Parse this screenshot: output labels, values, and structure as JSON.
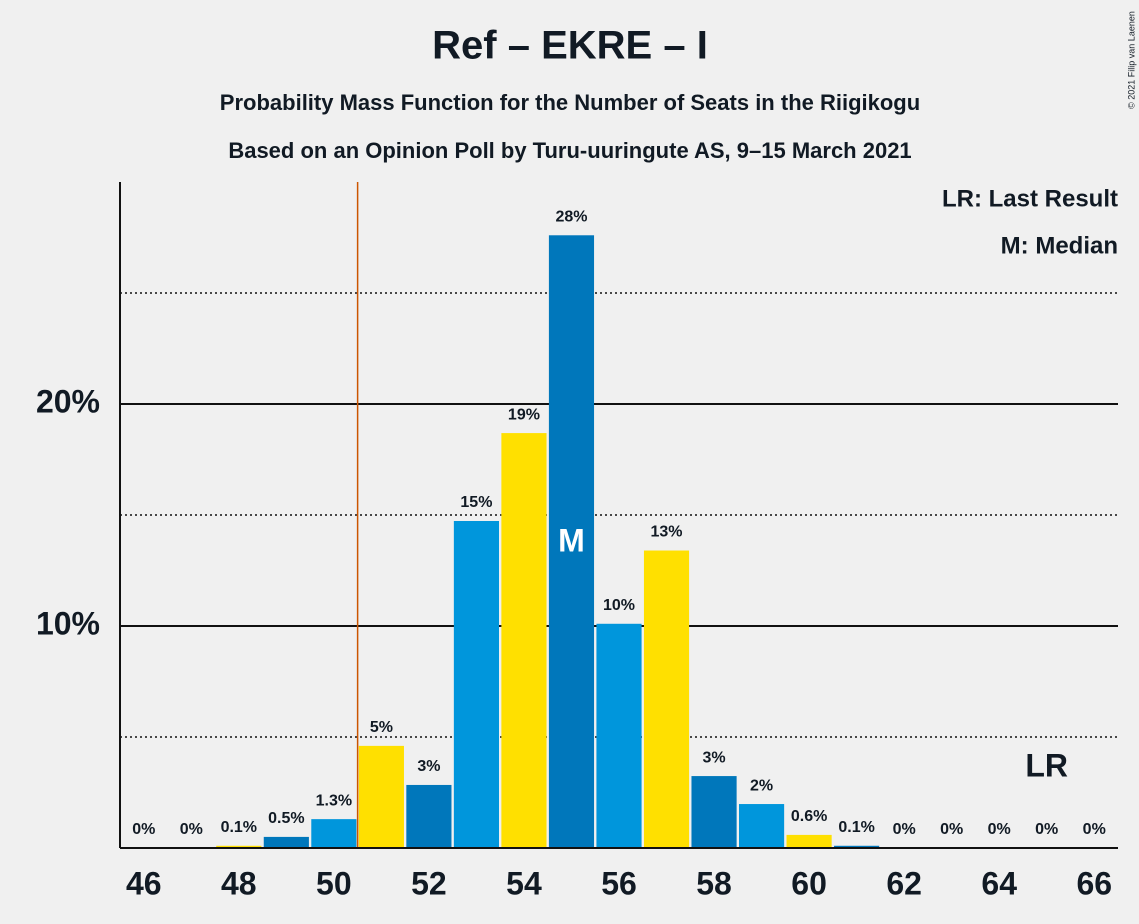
{
  "chart_data": {
    "type": "bar",
    "title": "Ref – EKRE – I",
    "subtitles": [
      "Probability Mass Function for the Number of Seats in the Riigikogu",
      "Based on an Opinion Poll by Turu-uuringute AS, 9–15 March 2021"
    ],
    "copyright": "© 2021 Filip van Laenen",
    "x": [
      46,
      47,
      48,
      49,
      50,
      51,
      52,
      53,
      54,
      55,
      56,
      57,
      58,
      59,
      60,
      61,
      62,
      63,
      64,
      65,
      66
    ],
    "values": [
      0,
      0,
      0.1,
      0.5,
      1.3,
      4.6,
      2.84,
      14.73,
      18.69,
      27.6,
      10.1,
      13.4,
      3.24,
      1.98,
      0.59,
      0.1,
      0,
      0,
      0,
      0,
      0
    ],
    "value_labels": [
      "0%",
      "0%",
      "0.1%",
      "0.5%",
      "1.3%",
      "5%",
      "3%",
      "15%",
      "19%",
      "28%",
      "10%",
      "13%",
      "3%",
      "2%",
      "0.6%",
      "0.1%",
      "0%",
      "0%",
      "0%",
      "0%",
      "0%"
    ],
    "colors": [
      "#0077bb",
      "#0096dc",
      "#ffe000",
      "#0077bb",
      "#0096dc",
      "#ffe000",
      "#0077bb",
      "#0096dc",
      "#ffe000",
      "#0077bb",
      "#0096dc",
      "#ffe000",
      "#0077bb",
      "#0096dc",
      "#ffe000",
      "#0077bb",
      "#0096dc",
      "#ffe000",
      "#0077bb",
      "#0096dc",
      "#ffe000"
    ],
    "xlim": [
      45.5,
      66.5
    ],
    "xticks": [
      46,
      48,
      50,
      52,
      54,
      56,
      58,
      60,
      62,
      64,
      66
    ],
    "ylim": [
      0,
      30
    ],
    "yticks": [
      {
        "value": 10,
        "label": "10%"
      },
      {
        "value": 20,
        "label": "20%"
      }
    ],
    "minor_yticks": [
      5,
      15,
      25
    ],
    "majority_line": {
      "x": 50.5,
      "color": "#cc5500"
    },
    "median": {
      "x": 55,
      "label": "M"
    },
    "last_result": {
      "x": 65,
      "label": "LR"
    },
    "legend": [
      "LR: Last Result",
      "M: Median"
    ]
  }
}
